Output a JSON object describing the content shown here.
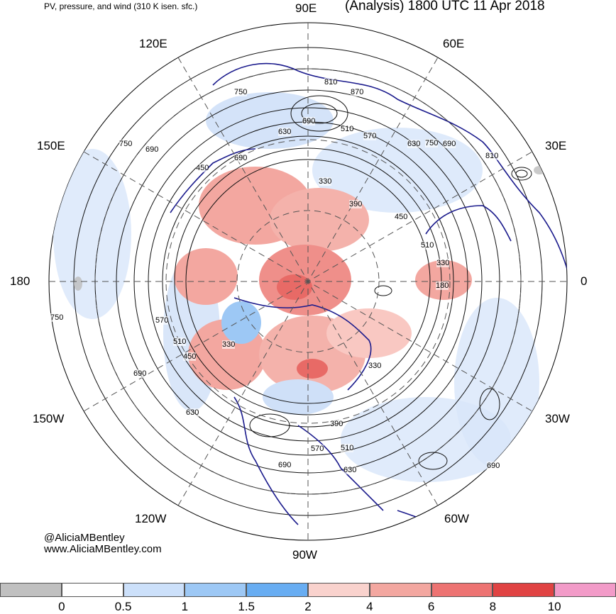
{
  "header": {
    "left_title": "PV, pressure, and wind (310 K isen. sfc.)",
    "right_title": "(Analysis) 1800 UTC 11 Apr 2018"
  },
  "longitude_labels": {
    "e90": "90E",
    "e120": "120E",
    "e60": "60E",
    "e150": "150E",
    "e30": "30E",
    "d180": "180",
    "d0": "0",
    "w150": "150W",
    "w30": "30W",
    "w120": "120W",
    "w60": "60W",
    "w90": "90W"
  },
  "credits": {
    "handle": "@AliciaMBentley",
    "website": "www.AliciaMBentley.com"
  },
  "contour_labels": [
    "810",
    "870",
    "750",
    "690",
    "630",
    "510",
    "570",
    "630",
    "750",
    "690",
    "810",
    "750",
    "690",
    "690",
    "450",
    "330",
    "390",
    "450",
    "510",
    "330",
    "180",
    "750",
    "570",
    "510",
    "450",
    "330",
    "690",
    "630",
    "330",
    "390",
    "510",
    "570",
    "630",
    "690",
    "690"
  ],
  "colors": {
    "coast": "#1a1a8c",
    "contour": "#111111",
    "pv_low": "#cfe0f8",
    "pv_mid": "#9cc6f2",
    "pv_high": "#f3a7a0",
    "pv_max": "#e86a66",
    "land_grey": "#bdbdbd"
  },
  "colorbar": {
    "bins": [
      {
        "color": "#c0c0c0",
        "label": "0"
      },
      {
        "color": "#ffffff",
        "label": "0.5"
      },
      {
        "color": "#cce0fa",
        "label": "1"
      },
      {
        "color": "#9dc8f5",
        "label": "1.5"
      },
      {
        "color": "#68adf2",
        "label": "2"
      },
      {
        "color": "#f9d2cd",
        "label": "4"
      },
      {
        "color": "#f3a7a0",
        "label": "6"
      },
      {
        "color": "#ed7372",
        "label": "8"
      },
      {
        "color": "#e04343",
        "label": "10"
      },
      {
        "color": "#f29bc8",
        "label": ""
      }
    ]
  }
}
